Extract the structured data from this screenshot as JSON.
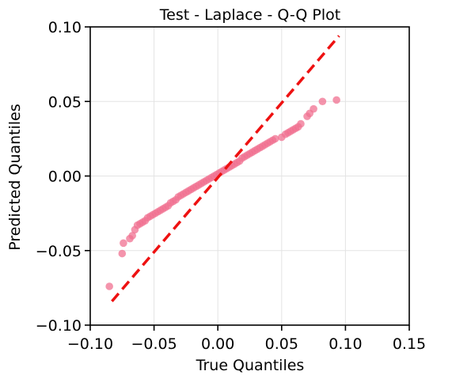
{
  "chart_data": {
    "type": "scatter",
    "title": "Test - Laplace - Q-Q Plot",
    "xlabel": "True Quantiles",
    "ylabel": "Predicted Quantiles",
    "xlim": [
      -0.1,
      0.15
    ],
    "ylim": [
      -0.1,
      0.1
    ],
    "xticks": [
      -0.1,
      -0.05,
      0.0,
      0.05,
      0.1,
      0.15
    ],
    "xtick_labels": [
      "−0.10",
      "−0.05",
      "0.00",
      "0.05",
      "0.10",
      "0.15"
    ],
    "yticks": [
      -0.1,
      -0.05,
      0.0,
      0.05,
      0.1
    ],
    "ytick_labels": [
      "−0.10",
      "−0.05",
      "0.00",
      "0.05",
      "0.10"
    ],
    "grid": true,
    "colors": {
      "points": "#f07090",
      "reference_line": "#ee1111"
    },
    "reference_line": {
      "x": [
        -0.083,
        0.095
      ],
      "y": [
        -0.084,
        0.094
      ]
    },
    "points": [
      {
        "x": -0.085,
        "y": -0.074
      },
      {
        "x": -0.075,
        "y": -0.052
      },
      {
        "x": -0.074,
        "y": -0.045
      },
      {
        "x": -0.069,
        "y": -0.042
      },
      {
        "x": -0.067,
        "y": -0.04
      },
      {
        "x": -0.065,
        "y": -0.036
      },
      {
        "x": -0.063,
        "y": -0.033
      },
      {
        "x": -0.061,
        "y": -0.032
      },
      {
        "x": -0.059,
        "y": -0.031
      },
      {
        "x": -0.057,
        "y": -0.03
      },
      {
        "x": -0.055,
        "y": -0.028
      },
      {
        "x": -0.053,
        "y": -0.027
      },
      {
        "x": -0.051,
        "y": -0.026
      },
      {
        "x": -0.049,
        "y": -0.025
      },
      {
        "x": -0.047,
        "y": -0.024
      },
      {
        "x": -0.045,
        "y": -0.023
      },
      {
        "x": -0.043,
        "y": -0.022
      },
      {
        "x": -0.041,
        "y": -0.021
      },
      {
        "x": -0.039,
        "y": -0.02
      },
      {
        "x": -0.037,
        "y": -0.018
      },
      {
        "x": -0.035,
        "y": -0.017
      },
      {
        "x": -0.033,
        "y": -0.016
      },
      {
        "x": -0.031,
        "y": -0.014
      },
      {
        "x": -0.029,
        "y": -0.013
      },
      {
        "x": -0.027,
        "y": -0.012
      },
      {
        "x": -0.025,
        "y": -0.011
      },
      {
        "x": -0.023,
        "y": -0.01
      },
      {
        "x": -0.021,
        "y": -0.009
      },
      {
        "x": -0.019,
        "y": -0.008
      },
      {
        "x": -0.017,
        "y": -0.007
      },
      {
        "x": -0.015,
        "y": -0.006
      },
      {
        "x": -0.013,
        "y": -0.005
      },
      {
        "x": -0.011,
        "y": -0.004
      },
      {
        "x": -0.009,
        "y": -0.003
      },
      {
        "x": -0.007,
        "y": -0.002
      },
      {
        "x": -0.005,
        "y": -0.001
      },
      {
        "x": -0.003,
        "y": 0.0
      },
      {
        "x": -0.001,
        "y": 0.001
      },
      {
        "x": 0.001,
        "y": 0.002
      },
      {
        "x": 0.003,
        "y": 0.003
      },
      {
        "x": 0.005,
        "y": 0.004
      },
      {
        "x": 0.007,
        "y": 0.005
      },
      {
        "x": 0.009,
        "y": 0.006
      },
      {
        "x": 0.011,
        "y": 0.007
      },
      {
        "x": 0.013,
        "y": 0.008
      },
      {
        "x": 0.015,
        "y": 0.009
      },
      {
        "x": 0.017,
        "y": 0.01
      },
      {
        "x": 0.019,
        "y": 0.012
      },
      {
        "x": 0.021,
        "y": 0.013
      },
      {
        "x": 0.023,
        "y": 0.014
      },
      {
        "x": 0.025,
        "y": 0.015
      },
      {
        "x": 0.027,
        "y": 0.016
      },
      {
        "x": 0.029,
        "y": 0.017
      },
      {
        "x": 0.031,
        "y": 0.018
      },
      {
        "x": 0.033,
        "y": 0.019
      },
      {
        "x": 0.035,
        "y": 0.02
      },
      {
        "x": 0.037,
        "y": 0.021
      },
      {
        "x": 0.039,
        "y": 0.022
      },
      {
        "x": 0.041,
        "y": 0.023
      },
      {
        "x": 0.043,
        "y": 0.024
      },
      {
        "x": 0.045,
        "y": 0.025
      },
      {
        "x": 0.05,
        "y": 0.026
      },
      {
        "x": 0.053,
        "y": 0.028
      },
      {
        "x": 0.055,
        "y": 0.029
      },
      {
        "x": 0.057,
        "y": 0.03
      },
      {
        "x": 0.059,
        "y": 0.031
      },
      {
        "x": 0.061,
        "y": 0.032
      },
      {
        "x": 0.063,
        "y": 0.033
      },
      {
        "x": 0.065,
        "y": 0.035
      },
      {
        "x": 0.07,
        "y": 0.04
      },
      {
        "x": 0.072,
        "y": 0.042
      },
      {
        "x": 0.075,
        "y": 0.045
      },
      {
        "x": 0.082,
        "y": 0.05
      },
      {
        "x": 0.093,
        "y": 0.051
      }
    ]
  }
}
